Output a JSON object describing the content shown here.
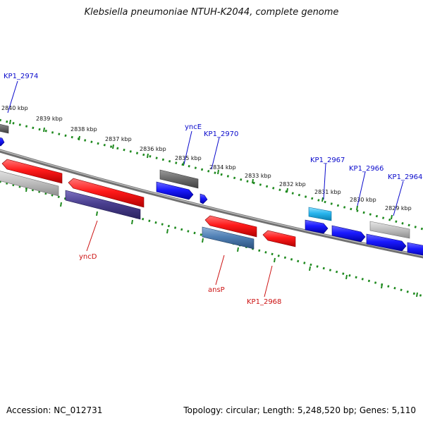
{
  "title": "Klebsiella pneumoniae NTUH-K2044, complete genome",
  "footer": {
    "accession": "Accession: NC_012731",
    "summary": "Topology: circular; Length: 5,248,520 bp; Genes: 5,110"
  },
  "colors": {
    "backbone": "#808080",
    "tick": "#1f8a1f",
    "label_forward": "#0a0acc",
    "label_reverse": "#cc1111",
    "red": "#ff1a1a",
    "dark_gray": "#6e6e6e",
    "light_gray": "#bdbdbd",
    "blue": "#1a1aff",
    "steel_blue": "#4f7fb4",
    "purple": "#4a3f8f",
    "cyan": "#29b6ee"
  },
  "ticks": [
    {
      "label": "2840 kbp"
    },
    {
      "label": "2839 kbp"
    },
    {
      "label": "2838 kbp"
    },
    {
      "label": "2837 kbp"
    },
    {
      "label": "2836 kbp"
    },
    {
      "label": "2835 kbp"
    },
    {
      "label": "2834 kbp"
    },
    {
      "label": "2833 kbp"
    },
    {
      "label": "2832 kbp"
    },
    {
      "label": "2831 kbp"
    },
    {
      "label": "2830 kbp"
    },
    {
      "label": "2829 kbp"
    }
  ],
  "gene_labels": [
    {
      "text": "KP1_2974",
      "strand": "forward"
    },
    {
      "text": "yncE",
      "strand": "forward"
    },
    {
      "text": "KP1_2970",
      "strand": "forward"
    },
    {
      "text": "KP1_2967",
      "strand": "forward"
    },
    {
      "text": "KP1_2966",
      "strand": "forward"
    },
    {
      "text": "KP1_2964",
      "strand": "forward"
    },
    {
      "text": "yncD",
      "strand": "reverse"
    },
    {
      "text": "ansP",
      "strand": "reverse"
    },
    {
      "text": "KP1_2968",
      "strand": "reverse"
    }
  ]
}
